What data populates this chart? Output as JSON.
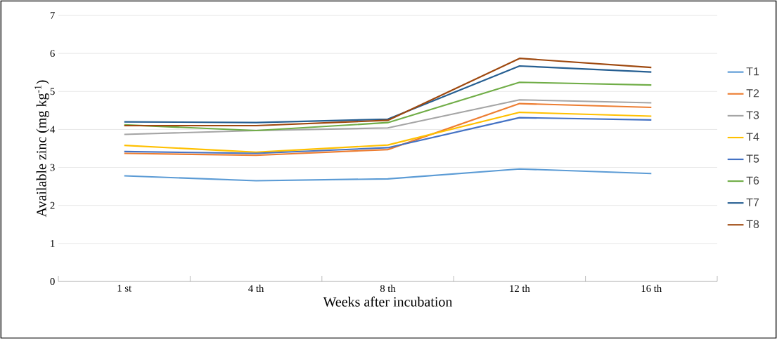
{
  "chart_data": {
    "type": "line",
    "xlabel": "Weeks after incubation",
    "ylabel": "Available zinc (mg kg$^{-1}$)",
    "categories": [
      "1 st",
      "4 th",
      "8 th",
      "12 th",
      "16 th"
    ],
    "ylim": [
      0,
      7
    ],
    "yticks": [
      0,
      1,
      2,
      3,
      4,
      5,
      6,
      7
    ],
    "grid": "y",
    "legend": "right",
    "marker": "none",
    "line_style": "solid",
    "series": [
      {
        "name": "T1",
        "color": "#5b9bd5",
        "values": [
          2.78,
          2.65,
          2.7,
          2.96,
          2.84
        ]
      },
      {
        "name": "T2",
        "color": "#ed7d31",
        "values": [
          3.37,
          3.32,
          3.47,
          4.68,
          4.58
        ]
      },
      {
        "name": "T3",
        "color": "#a5a5a5",
        "values": [
          3.87,
          3.97,
          4.04,
          4.78,
          4.7
        ]
      },
      {
        "name": "T4",
        "color": "#ffc000",
        "values": [
          3.58,
          3.4,
          3.59,
          4.45,
          4.35
        ]
      },
      {
        "name": "T5",
        "color": "#4472c4",
        "values": [
          3.42,
          3.37,
          3.52,
          4.31,
          4.25
        ]
      },
      {
        "name": "T6",
        "color": "#70ad47",
        "values": [
          4.12,
          3.97,
          4.18,
          5.24,
          5.17
        ]
      },
      {
        "name": "T7",
        "color": "#255e91",
        "values": [
          4.2,
          4.18,
          4.27,
          5.67,
          5.51
        ]
      },
      {
        "name": "T8",
        "color": "#9e480e",
        "values": [
          4.1,
          4.1,
          4.24,
          5.87,
          5.63
        ]
      }
    ]
  }
}
